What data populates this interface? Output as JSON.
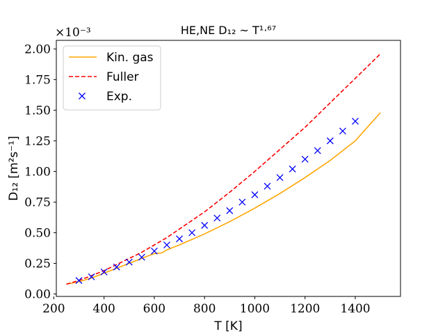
{
  "chart_data": {
    "type": "line",
    "title": "HE,NE D₁₂ ~ T¹·⁶⁷",
    "xlabel": "T [K]",
    "ylabel": "D₁₂ [m²s⁻¹]",
    "y_multiplier_label": "×10⁻³",
    "xlim": [
      210,
      1580
    ],
    "ylim": [
      -0.02,
      2.07
    ],
    "xticks": [
      200,
      400,
      600,
      800,
      1000,
      1200,
      1400
    ],
    "yticks": [
      0.0,
      0.25,
      0.5,
      0.75,
      1.0,
      1.25,
      1.5,
      1.75,
      2.0
    ],
    "ytick_labels": [
      "0.00",
      "0.25",
      "0.50",
      "0.75",
      "1.00",
      "1.25",
      "1.50",
      "1.75",
      "2.00"
    ],
    "legend_position": "upper-left",
    "series": [
      {
        "name": "Kin. gas",
        "style": "line",
        "color": "#ffa500",
        "x": [
          250,
          300,
          350,
          400,
          450,
          500,
          550,
          600,
          630,
          650,
          700,
          800,
          900,
          1000,
          1100,
          1200,
          1300,
          1400,
          1500
        ],
        "y": [
          0.08,
          0.1,
          0.13,
          0.17,
          0.21,
          0.25,
          0.29,
          0.33,
          0.335,
          0.36,
          0.4,
          0.49,
          0.59,
          0.7,
          0.82,
          0.95,
          1.09,
          1.25,
          1.48
        ]
      },
      {
        "name": "Fuller",
        "style": "dashed",
        "color": "#ff0000",
        "x": [
          250,
          300,
          350,
          400,
          450,
          500,
          550,
          600,
          650,
          700,
          750,
          800,
          900,
          1000,
          1100,
          1200,
          1300,
          1400,
          1500
        ],
        "y": [
          0.08,
          0.11,
          0.15,
          0.19,
          0.24,
          0.29,
          0.34,
          0.4,
          0.46,
          0.53,
          0.6,
          0.67,
          0.83,
          1.0,
          1.18,
          1.36,
          1.56,
          1.76,
          1.96
        ]
      },
      {
        "name": "Exp.",
        "style": "marker-x",
        "color": "#0000ff",
        "x": [
          300,
          350,
          400,
          450,
          500,
          550,
          600,
          650,
          700,
          750,
          800,
          850,
          900,
          950,
          1000,
          1050,
          1100,
          1150,
          1200,
          1250,
          1300,
          1350,
          1400
        ],
        "y": [
          0.11,
          0.14,
          0.18,
          0.22,
          0.26,
          0.3,
          0.35,
          0.4,
          0.45,
          0.5,
          0.56,
          0.62,
          0.68,
          0.75,
          0.81,
          0.88,
          0.95,
          1.02,
          1.1,
          1.17,
          1.25,
          1.33,
          1.41
        ]
      }
    ]
  }
}
